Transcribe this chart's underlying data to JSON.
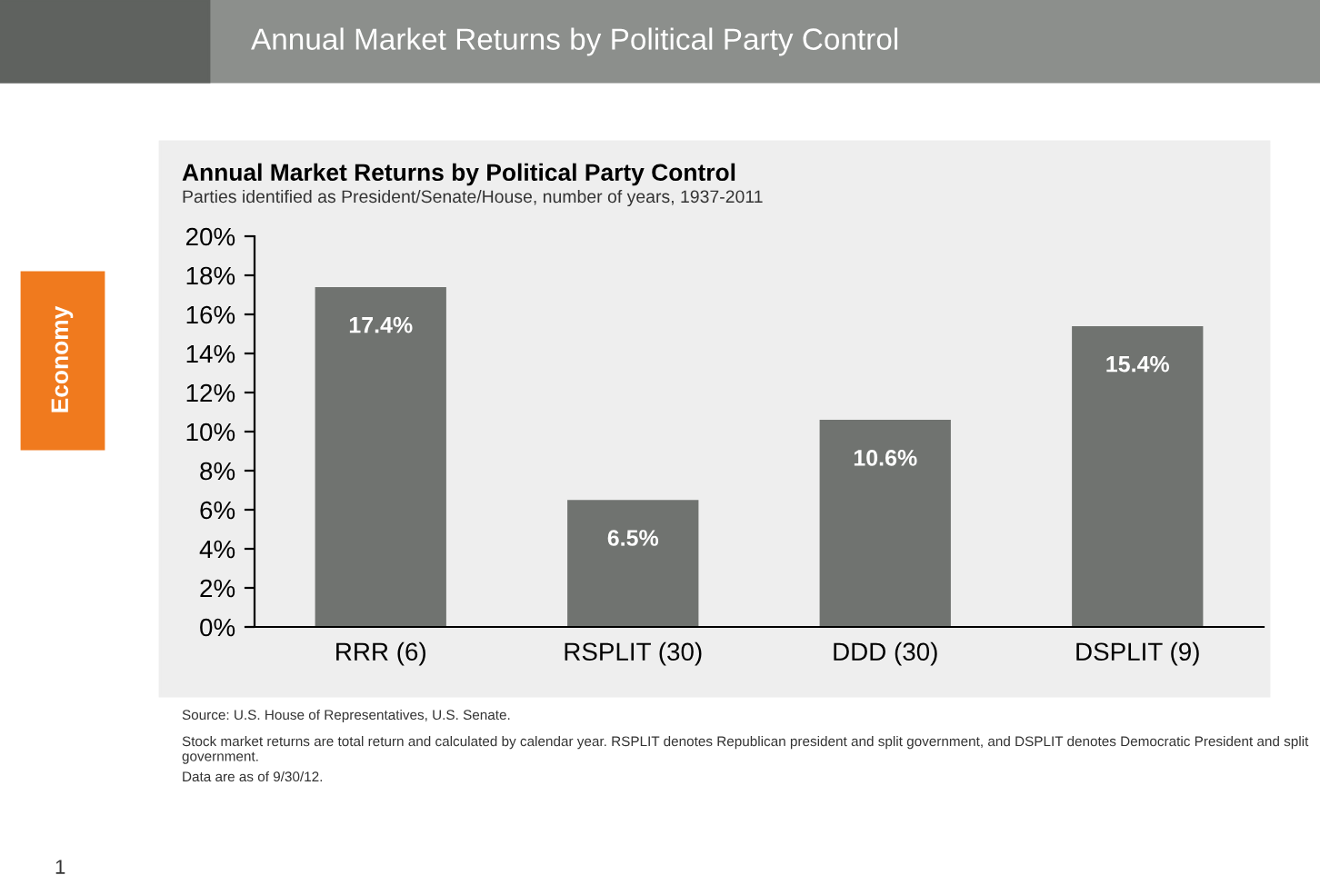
{
  "chart_data": {
    "type": "bar",
    "title": "Annual Market Returns by Political Party Control",
    "subtitle": "Parties identified as President/Senate/House, number of years, 1937-2011",
    "categories": [
      "RRR (6)",
      "RSPLIT (30)",
      "DDD (30)",
      "DSPLIT (9)"
    ],
    "values": [
      17.4,
      6.5,
      10.6,
      15.4
    ],
    "value_labels": [
      "17.4%",
      "6.5%",
      "10.6%",
      "15.4%"
    ],
    "color": "#707370",
    "ylim": [
      0,
      20
    ],
    "yticks": [
      {
        "value": 0,
        "label": "0%"
      },
      {
        "value": 2,
        "label": "2%"
      },
      {
        "value": 4,
        "label": "4%"
      },
      {
        "value": 6,
        "label": "6%"
      },
      {
        "value": 8,
        "label": "8%"
      },
      {
        "value": 10,
        "label": "10%"
      },
      {
        "value": 12,
        "label": "12%"
      },
      {
        "value": 14,
        "label": "14%"
      },
      {
        "value": 16,
        "label": "16%"
      },
      {
        "value": 18,
        "label": "18%"
      },
      {
        "value": 20,
        "label": "20%"
      }
    ],
    "grid": false,
    "annotations": [
      "Annual Market Returns by Political Party Control",
      "Economy",
      "Source: U.S. House of Representatives, U.S. Senate.",
      "Stock market returns are total return and calculated by calendar year. RSPLIT denotes Republican president and split government, and DSPLIT denotes Democratic President and split government.",
      "Data are as of 9/30/12.",
      "1"
    ]
  }
}
